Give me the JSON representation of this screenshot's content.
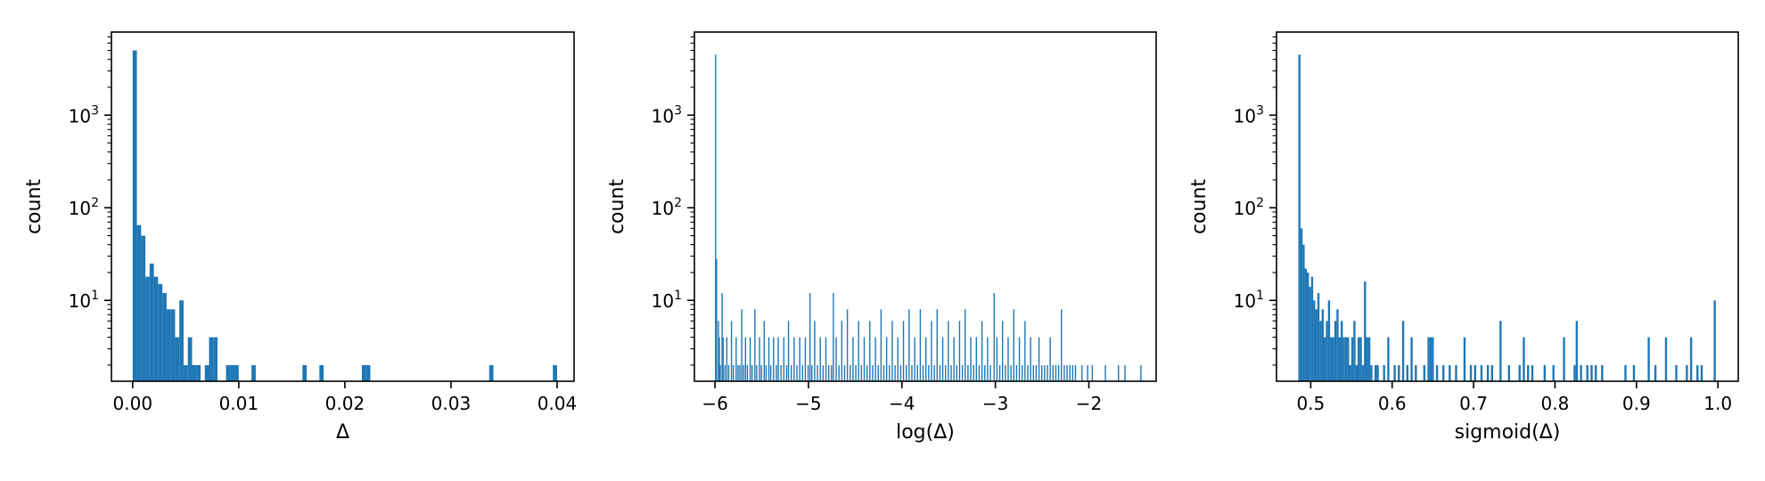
{
  "chart_data": [
    {
      "type": "bar",
      "xlabel": "Δ",
      "ylabel": "count",
      "xlim": [
        -0.002,
        0.0416
      ],
      "ylim_log10": [
        0.127,
        3.897
      ],
      "yscale": "log",
      "color": "#1f77b4",
      "xticks": [
        0.0,
        0.01,
        0.02,
        0.03,
        0.04
      ],
      "xtick_labels": [
        "0.00",
        "0.01",
        "0.02",
        "0.03",
        "0.04"
      ],
      "yticks": [
        10,
        100,
        1000
      ],
      "ytick_labels": [
        {
          "base": "10",
          "exp": "1"
        },
        {
          "base": "10",
          "exp": "2"
        },
        {
          "base": "10",
          "exp": "3"
        }
      ],
      "bin_width": 0.0004,
      "bars": [
        [
          0.0,
          5000
        ],
        [
          0.0004,
          65
        ],
        [
          0.0008,
          50
        ],
        [
          0.0012,
          18
        ],
        [
          0.0016,
          25
        ],
        [
          0.002,
          18
        ],
        [
          0.0024,
          15
        ],
        [
          0.0028,
          12
        ],
        [
          0.0032,
          8
        ],
        [
          0.0036,
          8
        ],
        [
          0.004,
          4
        ],
        [
          0.0044,
          10
        ],
        [
          0.0048,
          2
        ],
        [
          0.0052,
          4
        ],
        [
          0.0056,
          2
        ],
        [
          0.006,
          2
        ],
        [
          0.0068,
          2
        ],
        [
          0.0072,
          4
        ],
        [
          0.0076,
          4
        ],
        [
          0.0088,
          2
        ],
        [
          0.0092,
          2
        ],
        [
          0.0096,
          2
        ],
        [
          0.0112,
          2
        ],
        [
          0.016,
          2
        ],
        [
          0.0176,
          2
        ],
        [
          0.0216,
          2
        ],
        [
          0.022,
          2
        ],
        [
          0.0336,
          2
        ],
        [
          0.0396,
          2
        ]
      ]
    },
    {
      "type": "bar",
      "xlabel": "log(Δ)",
      "ylabel": "count",
      "xlim": [
        -6.22,
        -1.28
      ],
      "ylim_log10": [
        0.127,
        3.897
      ],
      "yscale": "log",
      "color": "#1f77b4",
      "xticks": [
        -6,
        -5,
        -4,
        -3,
        -2
      ],
      "xtick_labels": [
        "−6",
        "−5",
        "−4",
        "−3",
        "−2"
      ],
      "yticks": [
        10,
        100,
        1000
      ],
      "ytick_labels": [
        {
          "base": "10",
          "exp": "1"
        },
        {
          "base": "10",
          "exp": "2"
        },
        {
          "base": "10",
          "exp": "3"
        }
      ],
      "bin_width": 0.012,
      "bars": [
        [
          -6.0,
          4500
        ],
        [
          -5.99,
          28
        ],
        [
          -5.97,
          6
        ],
        [
          -5.96,
          4
        ],
        [
          -5.95,
          2
        ],
        [
          -5.93,
          12
        ],
        [
          -5.92,
          4
        ],
        [
          -5.9,
          2
        ],
        [
          -5.88,
          4
        ],
        [
          -5.86,
          2
        ],
        [
          -5.83,
          6
        ],
        [
          -5.81,
          2
        ],
        [
          -5.78,
          4
        ],
        [
          -5.76,
          2
        ],
        [
          -5.74,
          2
        ],
        [
          -5.72,
          8
        ],
        [
          -5.7,
          2
        ],
        [
          -5.68,
          4
        ],
        [
          -5.66,
          2
        ],
        [
          -5.63,
          4
        ],
        [
          -5.61,
          2
        ],
        [
          -5.58,
          8
        ],
        [
          -5.56,
          2
        ],
        [
          -5.53,
          4
        ],
        [
          -5.51,
          2
        ],
        [
          -5.48,
          6
        ],
        [
          -5.46,
          2
        ],
        [
          -5.43,
          4
        ],
        [
          -5.41,
          2
        ],
        [
          -5.38,
          4
        ],
        [
          -5.35,
          2
        ],
        [
          -5.33,
          4
        ],
        [
          -5.3,
          2
        ],
        [
          -5.27,
          4
        ],
        [
          -5.24,
          2
        ],
        [
          -5.22,
          6
        ],
        [
          -5.19,
          2
        ],
        [
          -5.16,
          4
        ],
        [
          -5.13,
          2
        ],
        [
          -5.1,
          4
        ],
        [
          -5.07,
          2
        ],
        [
          -5.04,
          4
        ],
        [
          -5.01,
          2
        ],
        [
          -4.99,
          12
        ],
        [
          -4.97,
          2
        ],
        [
          -4.94,
          6
        ],
        [
          -4.91,
          2
        ],
        [
          -4.88,
          4
        ],
        [
          -4.85,
          2
        ],
        [
          -4.82,
          4
        ],
        [
          -4.79,
          2
        ],
        [
          -4.76,
          2
        ],
        [
          -4.74,
          12
        ],
        [
          -4.71,
          4
        ],
        [
          -4.68,
          2
        ],
        [
          -4.65,
          6
        ],
        [
          -4.62,
          2
        ],
        [
          -4.59,
          8
        ],
        [
          -4.56,
          2
        ],
        [
          -4.53,
          4
        ],
        [
          -4.5,
          2
        ],
        [
          -4.47,
          6
        ],
        [
          -4.44,
          2
        ],
        [
          -4.41,
          4
        ],
        [
          -4.38,
          2
        ],
        [
          -4.35,
          6
        ],
        [
          -4.32,
          2
        ],
        [
          -4.29,
          4
        ],
        [
          -4.26,
          2
        ],
        [
          -4.23,
          8
        ],
        [
          -4.2,
          2
        ],
        [
          -4.17,
          4
        ],
        [
          -4.14,
          2
        ],
        [
          -4.11,
          6
        ],
        [
          -4.08,
          2
        ],
        [
          -4.05,
          4
        ],
        [
          -4.02,
          2
        ],
        [
          -3.99,
          6
        ],
        [
          -3.96,
          2
        ],
        [
          -3.93,
          8
        ],
        [
          -3.9,
          2
        ],
        [
          -3.87,
          4
        ],
        [
          -3.84,
          2
        ],
        [
          -3.81,
          8
        ],
        [
          -3.78,
          2
        ],
        [
          -3.75,
          4
        ],
        [
          -3.72,
          2
        ],
        [
          -3.69,
          6
        ],
        [
          -3.66,
          2
        ],
        [
          -3.63,
          8
        ],
        [
          -3.6,
          2
        ],
        [
          -3.57,
          4
        ],
        [
          -3.54,
          2
        ],
        [
          -3.51,
          6
        ],
        [
          -3.48,
          2
        ],
        [
          -3.45,
          4
        ],
        [
          -3.42,
          2
        ],
        [
          -3.39,
          6
        ],
        [
          -3.36,
          2
        ],
        [
          -3.33,
          8
        ],
        [
          -3.3,
          2
        ],
        [
          -3.27,
          4
        ],
        [
          -3.24,
          2
        ],
        [
          -3.21,
          4
        ],
        [
          -3.18,
          2
        ],
        [
          -3.15,
          6
        ],
        [
          -3.12,
          2
        ],
        [
          -3.09,
          4
        ],
        [
          -3.06,
          2
        ],
        [
          -3.02,
          12
        ],
        [
          -2.99,
          4
        ],
        [
          -2.96,
          2
        ],
        [
          -2.93,
          6
        ],
        [
          -2.9,
          2
        ],
        [
          -2.87,
          4
        ],
        [
          -2.84,
          2
        ],
        [
          -2.81,
          8
        ],
        [
          -2.78,
          2
        ],
        [
          -2.75,
          4
        ],
        [
          -2.72,
          2
        ],
        [
          -2.69,
          6
        ],
        [
          -2.66,
          2
        ],
        [
          -2.63,
          4
        ],
        [
          -2.6,
          2
        ],
        [
          -2.57,
          2
        ],
        [
          -2.54,
          4
        ],
        [
          -2.51,
          2
        ],
        [
          -2.48,
          2
        ],
        [
          -2.45,
          2
        ],
        [
          -2.42,
          4
        ],
        [
          -2.39,
          2
        ],
        [
          -2.36,
          2
        ],
        [
          -2.33,
          2
        ],
        [
          -2.3,
          8
        ],
        [
          -2.27,
          2
        ],
        [
          -2.24,
          2
        ],
        [
          -2.21,
          2
        ],
        [
          -2.18,
          2
        ],
        [
          -2.15,
          2
        ],
        [
          -2.08,
          2
        ],
        [
          -2.02,
          2
        ],
        [
          -1.97,
          2
        ],
        [
          -1.83,
          2
        ],
        [
          -1.69,
          2
        ],
        [
          -1.62,
          2
        ],
        [
          -1.45,
          2
        ]
      ]
    },
    {
      "type": "bar",
      "xlabel": "sigmoid(Δ)",
      "ylabel": "count",
      "xlim": [
        0.458,
        1.025
      ],
      "ylim_log10": [
        0.127,
        3.897
      ],
      "yscale": "log",
      "color": "#1f77b4",
      "xticks": [
        0.5,
        0.6,
        0.7,
        0.8,
        0.9,
        1.0
      ],
      "xtick_labels": [
        "0.5",
        "0.6",
        "0.7",
        "0.8",
        "0.9",
        "1.0"
      ],
      "yticks": [
        10,
        100,
        1000
      ],
      "ytick_labels": [
        {
          "base": "10",
          "exp": "1"
        },
        {
          "base": "10",
          "exp": "2"
        },
        {
          "base": "10",
          "exp": "3"
        }
      ],
      "bin_width": 0.0026,
      "bars": [
        [
          0.4848,
          4500
        ],
        [
          0.4874,
          60
        ],
        [
          0.49,
          40
        ],
        [
          0.4926,
          22
        ],
        [
          0.4952,
          20
        ],
        [
          0.4978,
          14
        ],
        [
          0.5004,
          18
        ],
        [
          0.503,
          10
        ],
        [
          0.5056,
          8
        ],
        [
          0.5082,
          12
        ],
        [
          0.5108,
          6
        ],
        [
          0.5134,
          8
        ],
        [
          0.516,
          4
        ],
        [
          0.5186,
          6
        ],
        [
          0.5212,
          10
        ],
        [
          0.5238,
          4
        ],
        [
          0.5264,
          4
        ],
        [
          0.529,
          6
        ],
        [
          0.5316,
          8
        ],
        [
          0.5342,
          4
        ],
        [
          0.5368,
          6
        ],
        [
          0.5394,
          4
        ],
        [
          0.542,
          4
        ],
        [
          0.5446,
          4
        ],
        [
          0.5472,
          2
        ],
        [
          0.5498,
          4
        ],
        [
          0.5524,
          6
        ],
        [
          0.555,
          2
        ],
        [
          0.5576,
          4
        ],
        [
          0.5602,
          4
        ],
        [
          0.5628,
          2
        ],
        [
          0.5654,
          16
        ],
        [
          0.568,
          4
        ],
        [
          0.5706,
          4
        ],
        [
          0.5732,
          2
        ],
        [
          0.5784,
          2
        ],
        [
          0.581,
          2
        ],
        [
          0.5888,
          2
        ],
        [
          0.594,
          4
        ],
        [
          0.6018,
          2
        ],
        [
          0.607,
          2
        ],
        [
          0.6122,
          6
        ],
        [
          0.6174,
          2
        ],
        [
          0.6226,
          4
        ],
        [
          0.6278,
          2
        ],
        [
          0.6382,
          2
        ],
        [
          0.6434,
          4
        ],
        [
          0.646,
          4
        ],
        [
          0.6486,
          4
        ],
        [
          0.6538,
          2
        ],
        [
          0.6616,
          2
        ],
        [
          0.6694,
          2
        ],
        [
          0.6772,
          2
        ],
        [
          0.6876,
          4
        ],
        [
          0.6954,
          2
        ],
        [
          0.7006,
          2
        ],
        [
          0.7084,
          2
        ],
        [
          0.7162,
          2
        ],
        [
          0.7214,
          2
        ],
        [
          0.7318,
          6
        ],
        [
          0.7422,
          2
        ],
        [
          0.7552,
          2
        ],
        [
          0.7604,
          4
        ],
        [
          0.7656,
          2
        ],
        [
          0.7708,
          2
        ],
        [
          0.786,
          2
        ],
        [
          0.7968,
          2
        ],
        [
          0.8098,
          4
        ],
        [
          0.8228,
          2
        ],
        [
          0.8254,
          6
        ],
        [
          0.8306,
          2
        ],
        [
          0.8384,
          2
        ],
        [
          0.8436,
          2
        ],
        [
          0.8488,
          2
        ],
        [
          0.8566,
          2
        ],
        [
          0.8852,
          2
        ],
        [
          0.8956,
          2
        ],
        [
          0.9138,
          4
        ],
        [
          0.922,
          2
        ],
        [
          0.935,
          4
        ],
        [
          0.9476,
          2
        ],
        [
          0.9606,
          2
        ],
        [
          0.9658,
          4
        ],
        [
          0.9736,
          2
        ],
        [
          0.9788,
          2
        ],
        [
          0.9948,
          10
        ]
      ]
    }
  ]
}
